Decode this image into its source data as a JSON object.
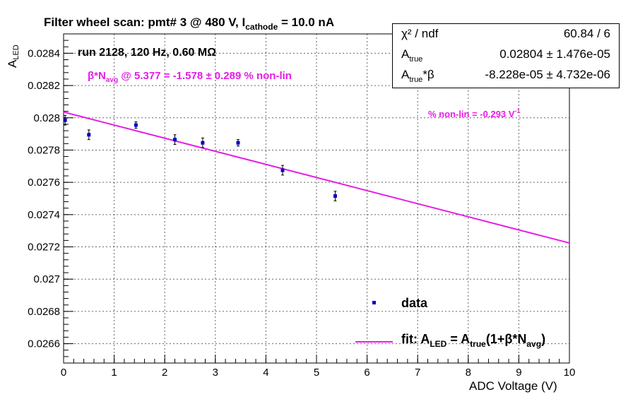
{
  "chart_data": {
    "type": "scatter",
    "title": "Filter wheel scan: pmt#   3 @   480 V, I",
    "title_sub": "cathode",
    "title_tail": "   = 10.0 nA",
    "xlabel": "ADC Voltage (V)",
    "ylabel_main": "A",
    "ylabel_sub": "LED",
    "xlim": [
      0,
      10
    ],
    "ylim": [
      0.02648,
      0.02852
    ],
    "grid": true,
    "x_ticks": [
      0,
      1,
      2,
      3,
      4,
      5,
      6,
      7,
      8,
      9,
      10
    ],
    "x_tick_labels": [
      "0",
      "1",
      "2",
      "3",
      "4",
      "5",
      "6",
      "7",
      "8",
      "9",
      "10"
    ],
    "y_ticks": [
      0.0266,
      0.0268,
      0.027,
      0.0272,
      0.0274,
      0.0276,
      0.0278,
      0.028,
      0.0282,
      0.0284
    ],
    "y_tick_labels": [
      "0.0266",
      "0.0268",
      "0.027",
      "0.0272",
      "0.0274",
      "0.0276",
      "0.0278",
      "0.028",
      "0.0282",
      "0.0284"
    ],
    "series": [
      {
        "name": "data",
        "type": "scatter",
        "color": "#0000cc",
        "points": [
          {
            "x": 0.03,
            "y": 0.027985,
            "err": 3e-05
          },
          {
            "x": 0.5,
            "y": 0.027895,
            "err": 3e-05
          },
          {
            "x": 1.43,
            "y": 0.027955,
            "err": 2e-05
          },
          {
            "x": 2.2,
            "y": 0.027865,
            "err": 3e-05
          },
          {
            "x": 2.75,
            "y": 0.027845,
            "err": 3e-05
          },
          {
            "x": 3.45,
            "y": 0.027845,
            "err": 2e-05
          },
          {
            "x": 4.33,
            "y": 0.027675,
            "err": 3e-05
          },
          {
            "x": 5.37,
            "y": 0.027515,
            "err": 3e-05
          }
        ]
      },
      {
        "type": "line",
        "color": "#e61ce6",
        "x": [
          0,
          10
        ],
        "y": [
          0.028036,
          0.027224
        ]
      }
    ],
    "legend": {
      "placement": "bottom-right",
      "entries": [
        {
          "label": "data",
          "marker": "square",
          "color": "#0000cc"
        },
        {
          "label_parts": [
            "fit: A",
            "LED",
            " = A",
            "true",
            "(1+β*N",
            "avg",
            ")"
          ],
          "marker": "line",
          "color": "#e61ce6"
        }
      ]
    },
    "annotations": {
      "run": "run 2128, 120 Hz, 0.60 MΩ",
      "beta_prefix": "β*N",
      "beta_sub": "avg",
      "beta_tail": " @ 5.377 = -1.578 ± 0.289 % non-lin",
      "nonlin": "% non-lin = -0.293 V",
      "nonlin_sup": "-1"
    },
    "stats": {
      "rows": [
        {
          "key": "χ² / ndf",
          "value": "60.84 / 6"
        },
        {
          "key_main": "A",
          "key_sub": "true",
          "key_tail": "",
          "value": "0.02804 ± 1.476e-05"
        },
        {
          "key_main": "A",
          "key_sub": "true",
          "key_tail": "*β",
          "value": "-8.228e-05 ± 4.732e-06"
        }
      ]
    }
  }
}
